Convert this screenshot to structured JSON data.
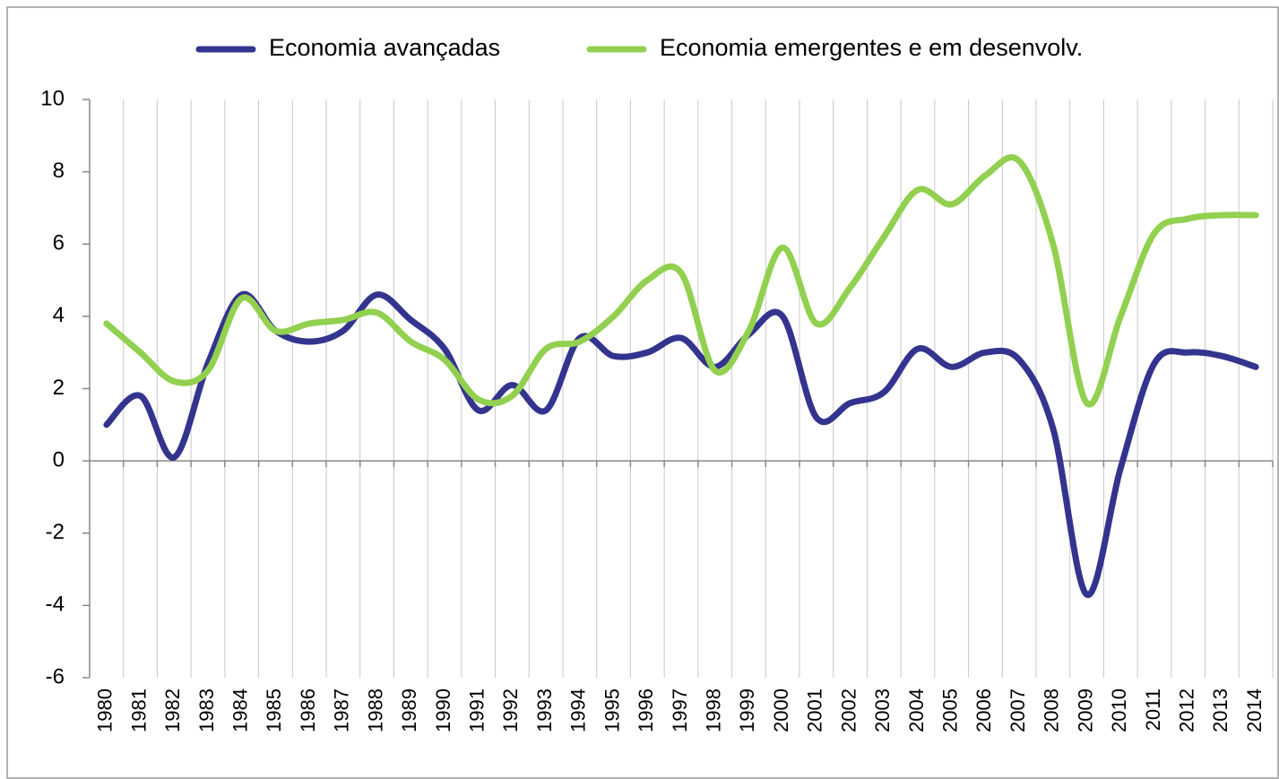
{
  "chart_data": {
    "type": "line",
    "categories": [
      "1980",
      "1981",
      "1982",
      "1983",
      "1984",
      "1985",
      "1986",
      "1987",
      "1988",
      "1989",
      "1990",
      "1991",
      "1992",
      "1993",
      "1994",
      "1995",
      "1996",
      "1997",
      "1998",
      "1999",
      "2000",
      "2001",
      "2002",
      "2003",
      "2004",
      "2005",
      "2006",
      "2007",
      "2008",
      "2009",
      "2010",
      "2011",
      "2012",
      "2013",
      "2014"
    ],
    "series": [
      {
        "name": "Economia avançadas",
        "color": "#33348e",
        "values": [
          1.0,
          1.8,
          0.1,
          2.7,
          4.6,
          3.6,
          3.3,
          3.6,
          4.6,
          3.9,
          3.1,
          1.4,
          2.1,
          1.4,
          3.4,
          2.9,
          3.0,
          3.4,
          2.6,
          3.5,
          4.0,
          1.2,
          1.6,
          1.9,
          3.1,
          2.6,
          3.0,
          2.8,
          0.9,
          -3.7,
          -0.2,
          2.7,
          3.0,
          2.9,
          2.6
        ]
      },
      {
        "name": "Economia emergentes e em desenvolv.",
        "color": "#92d050",
        "values": [
          3.8,
          3.0,
          2.2,
          2.5,
          4.5,
          3.6,
          3.8,
          3.9,
          4.1,
          3.3,
          2.8,
          1.7,
          1.8,
          3.1,
          3.3,
          4.0,
          5.0,
          5.2,
          2.5,
          3.6,
          5.9,
          3.8,
          4.8,
          6.2,
          7.5,
          7.1,
          7.9,
          8.3,
          6.0,
          1.6,
          4.0,
          6.3,
          6.7,
          6.8,
          6.8
        ]
      }
    ],
    "ylim": [
      -6,
      10
    ],
    "yticks": [
      -6,
      -4,
      -2,
      0,
      2,
      4,
      6,
      8,
      10
    ],
    "grid": "x",
    "legend": "top"
  }
}
